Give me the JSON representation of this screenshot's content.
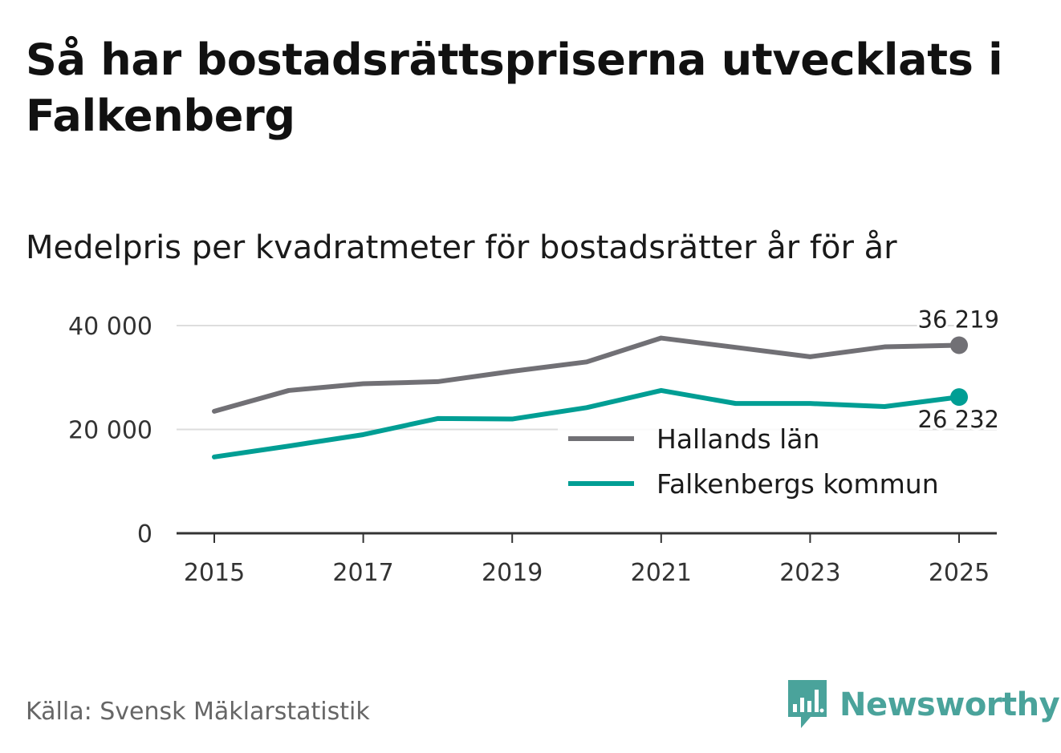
{
  "title": "Så har bostadsrättspriserna utvecklats i Falkenberg",
  "subtitle": "Medelpris per kvadratmeter för bostadsrätter år för år",
  "source": "Källa: Svensk Mäklarstatistik",
  "brand": {
    "name": "Newsworthy",
    "icon": "newsworthy-bar-chart-icon",
    "color": "#4aa39b"
  },
  "chart_data": {
    "type": "line",
    "title": "Så har bostadsrättspriserna utvecklats i Falkenberg",
    "subtitle": "Medelpris per kvadratmeter för bostadsrätter år för år",
    "xlabel": "",
    "ylabel": "",
    "x": [
      2015,
      2016,
      2017,
      2018,
      2019,
      2020,
      2021,
      2022,
      2023,
      2024,
      2025
    ],
    "xticks": [
      "2015",
      "2017",
      "2019",
      "2021",
      "2023",
      "2025"
    ],
    "xlim": [
      2015,
      2025
    ],
    "ylim": [
      0,
      40000
    ],
    "yticks": [
      0,
      20000,
      40000
    ],
    "ytick_labels": [
      "0",
      "20 000",
      "40 000"
    ],
    "grid": "horizontal",
    "legend_position": "center-right",
    "series": [
      {
        "name": "Hallands län",
        "color": "#717075",
        "values": [
          23500,
          27500,
          28800,
          29200,
          31200,
          33000,
          37600,
          35800,
          34000,
          35900,
          36219
        ],
        "end_label": "36 219"
      },
      {
        "name": "Falkenbergs kommun",
        "color": "#009e94",
        "values": [
          14700,
          16800,
          19000,
          22100,
          22000,
          24200,
          27500,
          25000,
          25000,
          24400,
          26232
        ],
        "end_label": "26 232"
      }
    ]
  }
}
